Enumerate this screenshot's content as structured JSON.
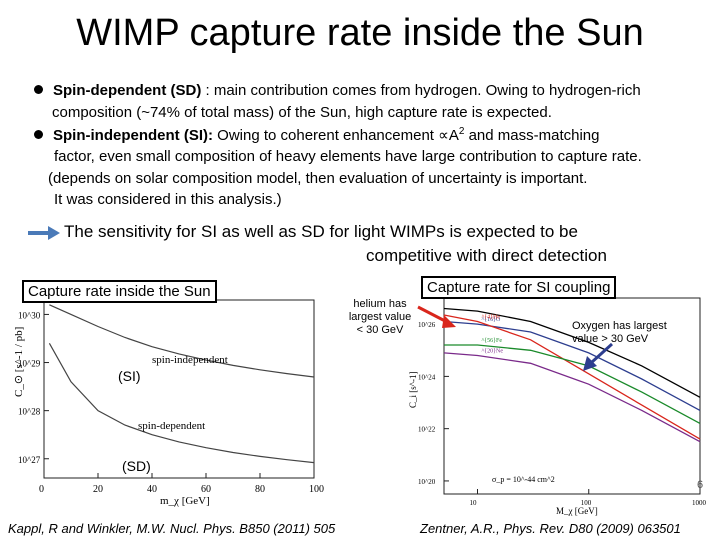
{
  "title": "WIMP capture rate inside the Sun",
  "bullets": {
    "b1_bold": "Spin-dependent (SD)",
    "b1_line1": " : main contribution comes from hydrogen. Owing to hydrogen-rich",
    "b1_line2": "composition (~74% of total mass) of the Sun, high capture rate is expected.",
    "b2_bold": "Spin-independent (SI):",
    "b2_line1_a": "  Owing to coherent enhancement ",
    "b2_propto": "∝",
    "b2_A": "A",
    "b2_sup": "2",
    "b2_line1_b": " and mass-matching",
    "b2_line2": "factor, even small composition of heavy elements have large contribution to capture rate.",
    "b2_line3": "(depends on solar composition model,  then evaluation of uncertainty is important.",
    "b2_line4": "It was considered in this analysis.)"
  },
  "conclusion": {
    "line1": "The sensitivity for SI as well as SD for light WIMPs is expected to be",
    "line2": "competitive with direct detection"
  },
  "left_panel": {
    "label": "Capture rate inside the Sun",
    "si_annot": "(SI)",
    "sd_annot": "(SD)",
    "citation": "Kappl, R and Winkler, M.W.  Nucl. Phys. B850 (2011) 505"
  },
  "right_panel": {
    "label": "Capture rate for SI coupling",
    "helium_note": [
      "helium has",
      "largest value",
      "< 30 GeV"
    ],
    "oxygen_note": [
      "Oxygen has largest",
      "value > 30 GeV"
    ],
    "citation": "Zentner, A.R., Phys. Rev. D80 (2009) 063501"
  },
  "page_number": "6",
  "colors": {
    "arrow": "#4a7ab8",
    "red": "#d9261c",
    "darkblue": "#2d3e8f"
  },
  "chart_data": [
    {
      "type": "line",
      "title": "",
      "xlabel": "m_χ [GeV]",
      "ylabel": "C_⊙ [s^-1 / pb]",
      "x_ticks": [
        "0",
        "20",
        "40",
        "60",
        "80",
        "100"
      ],
      "y_ticks": [
        "10^27",
        "10^28",
        "10^29",
        "10^30"
      ],
      "xlim": [
        0,
        100
      ],
      "ylim_log10": [
        26.6,
        30.3
      ],
      "series": [
        {
          "name": "spin-independent",
          "x": [
            2,
            10,
            20,
            30,
            40,
            50,
            60,
            70,
            80,
            90,
            100
          ],
          "log10_y": [
            30.2,
            30.0,
            29.75,
            29.52,
            29.33,
            29.18,
            29.05,
            28.94,
            28.85,
            28.77,
            28.7
          ]
        },
        {
          "name": "spin-dependent",
          "x": [
            2,
            10,
            20,
            30,
            40,
            50,
            60,
            70,
            80,
            90,
            100
          ],
          "log10_y": [
            29.4,
            28.6,
            28.0,
            27.7,
            27.5,
            27.35,
            27.23,
            27.13,
            27.05,
            26.98,
            26.92
          ]
        }
      ]
    },
    {
      "type": "line",
      "title": "",
      "xlabel": "M_χ [GeV]",
      "ylabel": "C_i [s^-1]",
      "x_ticks": [
        "10",
        "100",
        "1000"
      ],
      "y_ticks": [
        "10^26",
        "10^24",
        "10^22",
        "10^20"
      ],
      "xscale": "log",
      "xlim": [
        5,
        1000
      ],
      "ylim_log10": [
        19.5,
        27
      ],
      "annotation": "σ_p = 10^-44 cm^2",
      "series": [
        {
          "name": "total",
          "color": "#000000",
          "x": [
            5,
            10,
            30,
            100,
            300,
            1000
          ],
          "log10_y": [
            26.6,
            26.5,
            26.1,
            25.3,
            24.4,
            23.2
          ]
        },
        {
          "name": "^{16}O",
          "color": "#2d3e8f",
          "x": [
            5,
            10,
            30,
            100,
            300,
            1000
          ],
          "log10_y": [
            26.1,
            26.0,
            25.7,
            24.9,
            23.9,
            22.7
          ]
        },
        {
          "name": "^{4}He",
          "color": "#d9261c",
          "x": [
            5,
            10,
            30,
            100,
            300,
            1000
          ],
          "log10_y": [
            26.35,
            26.1,
            25.4,
            24.1,
            22.9,
            21.6
          ]
        },
        {
          "name": "^{56}Fe",
          "color": "#1a8a2a",
          "x": [
            5,
            10,
            30,
            100,
            300,
            1000
          ],
          "log10_y": [
            25.2,
            25.2,
            25.0,
            24.4,
            23.4,
            22.2
          ]
        },
        {
          "name": "^{20}Ne",
          "color": "#7a2a8a",
          "x": [
            5,
            10,
            30,
            100,
            300,
            1000
          ],
          "log10_y": [
            24.9,
            24.8,
            24.5,
            23.7,
            22.7,
            21.5
          ]
        }
      ]
    }
  ]
}
